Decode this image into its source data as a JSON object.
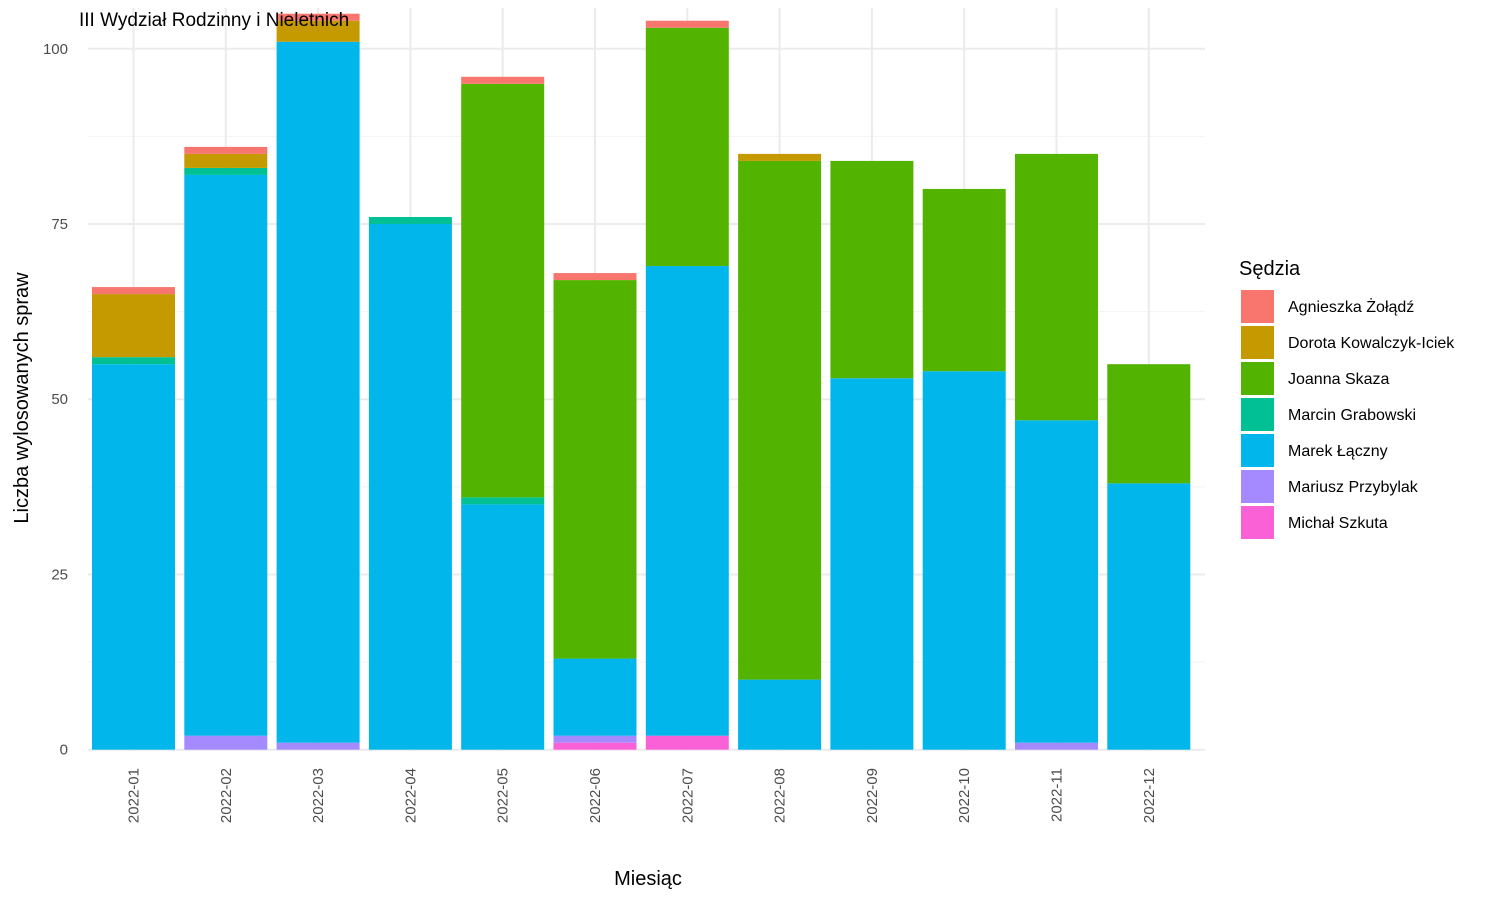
{
  "chart_data": {
    "type": "bar",
    "stacked": true,
    "title": "III Wydział Rodzinny i Nieletnich",
    "xlabel": "Miesiąc",
    "ylabel": "Liczba wylosowanych spraw",
    "ylim": [
      0,
      106
    ],
    "yticks": [
      0,
      25,
      50,
      75,
      100
    ],
    "grid": true,
    "legend_title": "Sędzia",
    "legend_position": "right",
    "categories": [
      "2022-01",
      "2022-02",
      "2022-03",
      "2022-04",
      "2022-05",
      "2022-06",
      "2022-07",
      "2022-08",
      "2022-09",
      "2022-10",
      "2022-11",
      "2022-12"
    ],
    "series": [
      {
        "name": "Agnieszka Żołądź",
        "color": "#F8766D",
        "values": [
          1,
          1,
          1,
          0,
          1,
          1,
          1,
          0,
          0,
          0,
          0,
          0
        ]
      },
      {
        "name": "Dorota Kowalczyk-Iciek",
        "color": "#C49A00",
        "values": [
          9,
          2,
          3,
          0,
          0,
          0,
          0,
          1,
          0,
          0,
          0,
          0
        ]
      },
      {
        "name": "Joanna Skaza",
        "color": "#53B400",
        "values": [
          0,
          0,
          0,
          0,
          59,
          54,
          34,
          74,
          31,
          26,
          38,
          17
        ]
      },
      {
        "name": "Marcin Grabowski",
        "color": "#00C094",
        "values": [
          1,
          1,
          0,
          1,
          1,
          0,
          0,
          0,
          0,
          0,
          0,
          0
        ]
      },
      {
        "name": "Marek Łączny",
        "color": "#00B6EB",
        "values": [
          55,
          80,
          100,
          75,
          35,
          11,
          67,
          10,
          53,
          54,
          46,
          38
        ]
      },
      {
        "name": "Mariusz Przybylak",
        "color": "#A58AFF",
        "values": [
          0,
          2,
          1,
          0,
          0,
          1,
          0,
          0,
          0,
          0,
          1,
          0
        ]
      },
      {
        "name": "Michał Szkuta",
        "color": "#FB61D7",
        "values": [
          0,
          0,
          0,
          0,
          0,
          1,
          2,
          0,
          0,
          0,
          0,
          0
        ]
      }
    ]
  }
}
